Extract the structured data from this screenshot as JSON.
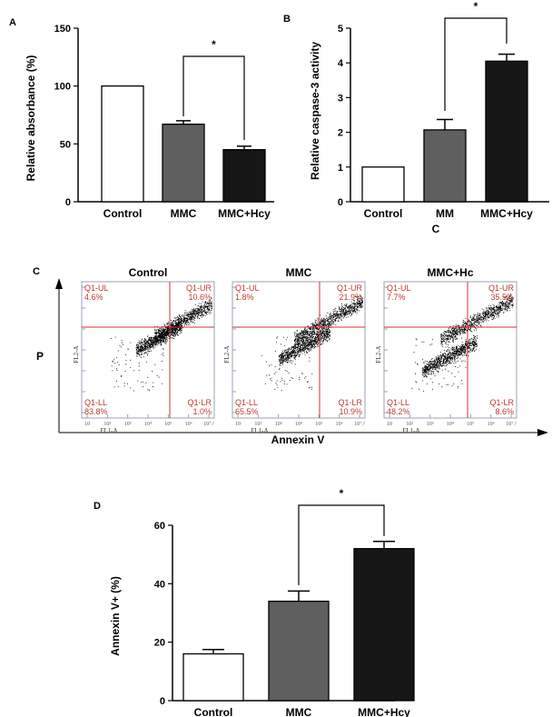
{
  "chart_data": [
    {
      "type": "bar",
      "panel": "A",
      "ylabel": "Relative absorbance (%)",
      "xlabel": "",
      "categories": [
        "Control",
        "MMC",
        "MMC+Hcy"
      ],
      "values": [
        100,
        67,
        45
      ],
      "errors": [
        0,
        3,
        3
      ],
      "colors": [
        "#ffffff",
        "#5f5f5f",
        "#161616"
      ],
      "ylim": [
        0,
        150
      ],
      "yticks": [
        0,
        50,
        100,
        150
      ],
      "significance": {
        "from": 1,
        "to": 2,
        "label": "*"
      }
    },
    {
      "type": "bar",
      "panel": "B",
      "ylabel": "Relative caspase-3 activity",
      "xlabel": "C",
      "categories": [
        "Control",
        "MM",
        "MMC+Hcy"
      ],
      "values": [
        1.0,
        2.07,
        4.05
      ],
      "errors": [
        0,
        0.3,
        0.2
      ],
      "colors": [
        "#ffffff",
        "#5f5f5f",
        "#161616"
      ],
      "ylim": [
        0,
        5
      ],
      "yticks": [
        0,
        1,
        2,
        3,
        4,
        5
      ],
      "significance": {
        "from": 1,
        "to": 2,
        "label": "*"
      }
    },
    {
      "type": "scatter",
      "panel": "C",
      "xlabel": "Annexin V",
      "ylabel": "P",
      "x_axis_short": "FL1-A",
      "y_axis_short": "FL2-A",
      "tick_labels": [
        "10",
        "10²",
        "10³",
        "10⁴",
        "10⁵",
        "10⁶",
        "10⁷.²"
      ],
      "plots": [
        {
          "title": "Control",
          "UL": "Q1-UL",
          "UR": "Q1-UR",
          "LL": "Q1-LL",
          "LR": "Q1-LR",
          "UL_pct": "4.6%",
          "UR_pct": "10.6%",
          "LL_pct": "83.8%",
          "LR_pct": "1.0%"
        },
        {
          "title": "MMC",
          "UL": "Q1-UL",
          "UR": "Q1-UR",
          "LL": "Q1-LL",
          "LR": "Q1-LR",
          "UL_pct": "1.8%",
          "UR_pct": "21.9%",
          "LL_pct": "65.5%",
          "LR_pct": "10.9%"
        },
        {
          "title": "MMC+Hc",
          "UL": "Q1-UL",
          "UR": "Q1-UR",
          "LL": "Q1-LL",
          "LR": "Q1-LR",
          "UL_pct": "7.7%",
          "UR_pct": "35.5%",
          "LL_pct": "48.2%",
          "LR_pct": "8.6%"
        }
      ]
    },
    {
      "type": "bar",
      "panel": "D",
      "ylabel": "Annexin V+ (%)",
      "xlabel": "",
      "categories": [
        "Control",
        "MMC",
        "MMC+Hcy"
      ],
      "values": [
        16,
        34,
        52
      ],
      "errors": [
        1.5,
        3.5,
        2.5
      ],
      "colors": [
        "#ffffff",
        "#5f5f5f",
        "#161616"
      ],
      "ylim": [
        0,
        60
      ],
      "yticks": [
        0,
        20,
        40,
        60
      ],
      "significance": {
        "from": 1,
        "to": 2,
        "label": "*"
      }
    }
  ]
}
